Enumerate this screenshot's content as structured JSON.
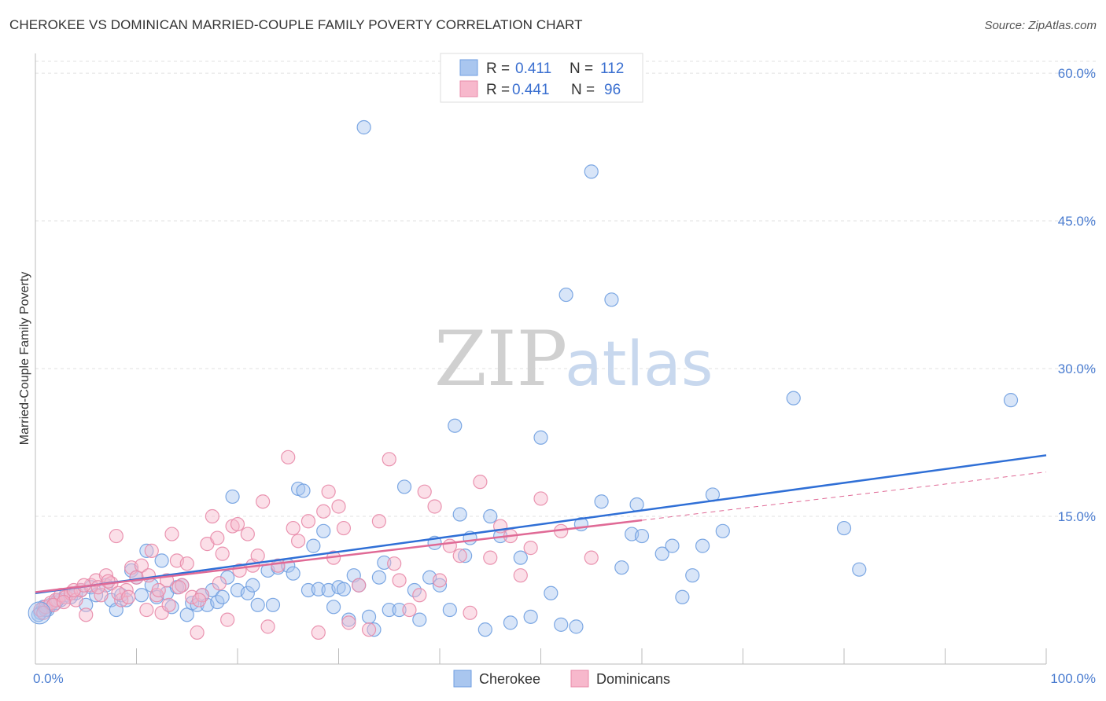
{
  "title": "CHEROKEE VS DOMINICAN MARRIED-COUPLE FAMILY POVERTY CORRELATION CHART",
  "source": "Source: ZipAtlas.com",
  "watermark": {
    "zip": "ZIP",
    "atlas": "atlas"
  },
  "legend": {
    "rows": [
      {
        "r_label": "R =",
        "r_value": "0.411",
        "n_label": "N =",
        "n_value": "112",
        "color": "#a9c6ef",
        "stroke": "#6f9ee0"
      },
      {
        "r_label": "R =",
        "r_value": "0.441",
        "n_label": "N =",
        "n_value": "96",
        "color": "#f7b8cc",
        "stroke": "#e88aa8"
      }
    ]
  },
  "bottom_legend": [
    {
      "label": "Cherokee",
      "color": "#a9c6ef",
      "stroke": "#6f9ee0"
    },
    {
      "label": "Dominicans",
      "color": "#f7b8cc",
      "stroke": "#e88aa8"
    }
  ],
  "chart_data": {
    "type": "scatter",
    "ylabel": "Married-Couple Family Poverty",
    "xlim": [
      0,
      100
    ],
    "ylim": [
      0,
      62
    ],
    "x_tick_labels": [
      {
        "value": 0,
        "label": "0.0%"
      },
      {
        "value": 100,
        "label": "100.0%"
      }
    ],
    "y_tick_labels": [
      {
        "value": 15,
        "label": "15.0%"
      },
      {
        "value": 30,
        "label": "30.0%"
      },
      {
        "value": 45,
        "label": "45.0%"
      },
      {
        "value": 60,
        "label": "60.0%"
      }
    ],
    "grid": true,
    "series": [
      {
        "name": "Cherokee",
        "color": "#a9c6ef",
        "stroke": "#6f9ee0",
        "trend": {
          "x": [
            0,
            100
          ],
          "y": [
            7.2,
            21.2
          ],
          "color": "#2f6fd6"
        },
        "points": [
          [
            0.5,
            5.2
          ],
          [
            0.8,
            5.8
          ],
          [
            1.2,
            5.5
          ],
          [
            1.5,
            6.0
          ],
          [
            2.0,
            6.2
          ],
          [
            2.5,
            6.5
          ],
          [
            3.0,
            7.0
          ],
          [
            3.5,
            6.8
          ],
          [
            4.0,
            7.2
          ],
          [
            4.5,
            7.5
          ],
          [
            5.0,
            6.0
          ],
          [
            5.5,
            7.8
          ],
          [
            6.0,
            7.0
          ],
          [
            7.0,
            8.0
          ],
          [
            7.5,
            6.5
          ],
          [
            8.0,
            5.5
          ],
          [
            8.5,
            7.0
          ],
          [
            9.0,
            6.5
          ],
          [
            9.5,
            9.5
          ],
          [
            10.0,
            8.8
          ],
          [
            10.5,
            7.0
          ],
          [
            11.0,
            11.5
          ],
          [
            11.5,
            8.0
          ],
          [
            12.0,
            6.8
          ],
          [
            12.5,
            10.5
          ],
          [
            13.0,
            7.2
          ],
          [
            13.5,
            5.8
          ],
          [
            14.0,
            7.8
          ],
          [
            14.5,
            8.0
          ],
          [
            15.0,
            5.0
          ],
          [
            15.5,
            6.2
          ],
          [
            16.0,
            6.0
          ],
          [
            16.5,
            7.0
          ],
          [
            17.0,
            6.0
          ],
          [
            17.5,
            7.5
          ],
          [
            18.0,
            6.3
          ],
          [
            18.5,
            6.8
          ],
          [
            19.0,
            8.8
          ],
          [
            19.5,
            17.0
          ],
          [
            20.0,
            7.5
          ],
          [
            21.0,
            7.2
          ],
          [
            21.5,
            8.0
          ],
          [
            22.0,
            6.0
          ],
          [
            23.0,
            9.5
          ],
          [
            23.5,
            6.0
          ],
          [
            24.0,
            9.8
          ],
          [
            25.0,
            10.0
          ],
          [
            25.5,
            9.2
          ],
          [
            26.0,
            17.8
          ],
          [
            26.5,
            17.6
          ],
          [
            27.0,
            7.5
          ],
          [
            27.5,
            12.0
          ],
          [
            28.0,
            7.6
          ],
          [
            28.5,
            13.5
          ],
          [
            29.0,
            7.5
          ],
          [
            29.5,
            5.8
          ],
          [
            30.0,
            7.8
          ],
          [
            30.5,
            7.6
          ],
          [
            31.0,
            4.5
          ],
          [
            31.5,
            9.0
          ],
          [
            32.0,
            8.0
          ],
          [
            32.5,
            54.5
          ],
          [
            33.0,
            4.8
          ],
          [
            33.5,
            3.5
          ],
          [
            34.0,
            8.8
          ],
          [
            34.5,
            10.3
          ],
          [
            35.0,
            5.5
          ],
          [
            36.0,
            5.5
          ],
          [
            36.5,
            18.0
          ],
          [
            37.5,
            7.5
          ],
          [
            38.0,
            4.5
          ],
          [
            39.0,
            8.8
          ],
          [
            39.5,
            12.3
          ],
          [
            40.0,
            8.0
          ],
          [
            41.0,
            5.5
          ],
          [
            41.5,
            24.2
          ],
          [
            42.0,
            15.2
          ],
          [
            42.5,
            11.0
          ],
          [
            43.0,
            12.8
          ],
          [
            44.5,
            3.5
          ],
          [
            45.0,
            15.0
          ],
          [
            46.0,
            13.0
          ],
          [
            47.0,
            4.2
          ],
          [
            48.0,
            10.8
          ],
          [
            49.0,
            4.8
          ],
          [
            50.0,
            23.0
          ],
          [
            51.0,
            7.2
          ],
          [
            52.0,
            4.0
          ],
          [
            52.5,
            37.5
          ],
          [
            53.5,
            3.8
          ],
          [
            54.0,
            14.2
          ],
          [
            55.0,
            50.0
          ],
          [
            56.0,
            16.5
          ],
          [
            57.0,
            37.0
          ],
          [
            58.0,
            9.8
          ],
          [
            59.0,
            13.2
          ],
          [
            59.5,
            16.2
          ],
          [
            60.0,
            13.0
          ],
          [
            62.0,
            11.2
          ],
          [
            63.0,
            12.0
          ],
          [
            64.0,
            6.8
          ],
          [
            65.0,
            9.0
          ],
          [
            66.0,
            12.0
          ],
          [
            67.0,
            17.2
          ],
          [
            68.0,
            13.5
          ],
          [
            75.0,
            27.0
          ],
          [
            80.0,
            13.8
          ],
          [
            81.5,
            9.6
          ],
          [
            96.5,
            26.8
          ],
          [
            0.3,
            5.0
          ],
          [
            1.0,
            5.5
          ],
          [
            2.2,
            6.5
          ]
        ]
      },
      {
        "name": "Dominicans",
        "color": "#f7b8cc",
        "stroke": "#e88aa8",
        "trend": {
          "x": [
            0,
            60
          ],
          "y": [
            7.3,
            14.6
          ],
          "color": "#e06a96"
        },
        "extrapolation": {
          "x": [
            60,
            100
          ],
          "y": [
            14.6,
            19.5
          ]
        },
        "points": [
          [
            0.5,
            5.5
          ],
          [
            1.0,
            5.8
          ],
          [
            1.5,
            6.2
          ],
          [
            2.0,
            6.5
          ],
          [
            2.5,
            7.0
          ],
          [
            3.0,
            6.8
          ],
          [
            3.5,
            7.2
          ],
          [
            4.0,
            6.5
          ],
          [
            4.5,
            7.5
          ],
          [
            5.0,
            5.0
          ],
          [
            5.5,
            8.0
          ],
          [
            6.0,
            8.5
          ],
          [
            6.5,
            7.0
          ],
          [
            7.0,
            9.0
          ],
          [
            7.5,
            8.2
          ],
          [
            8.0,
            13.0
          ],
          [
            8.5,
            6.5
          ],
          [
            9.0,
            7.5
          ],
          [
            9.5,
            9.8
          ],
          [
            10.0,
            8.8
          ],
          [
            10.5,
            10.0
          ],
          [
            11.0,
            5.5
          ],
          [
            11.5,
            11.5
          ],
          [
            12.0,
            7.0
          ],
          [
            12.5,
            5.2
          ],
          [
            13.0,
            8.5
          ],
          [
            13.5,
            13.2
          ],
          [
            14.0,
            10.5
          ],
          [
            14.5,
            8.0
          ],
          [
            15.0,
            10.2
          ],
          [
            15.5,
            6.8
          ],
          [
            16.0,
            3.2
          ],
          [
            16.5,
            7.0
          ],
          [
            17.0,
            12.2
          ],
          [
            17.5,
            15.0
          ],
          [
            18.0,
            12.8
          ],
          [
            18.5,
            11.2
          ],
          [
            19.0,
            4.5
          ],
          [
            19.5,
            14.0
          ],
          [
            20.0,
            14.2
          ],
          [
            21.0,
            13.2
          ],
          [
            21.5,
            10.0
          ],
          [
            22.0,
            11.0
          ],
          [
            22.5,
            16.5
          ],
          [
            23.0,
            3.8
          ],
          [
            24.0,
            10.0
          ],
          [
            25.0,
            21.0
          ],
          [
            25.5,
            13.8
          ],
          [
            26.0,
            12.5
          ],
          [
            27.0,
            14.5
          ],
          [
            28.0,
            3.2
          ],
          [
            28.5,
            15.5
          ],
          [
            29.0,
            17.5
          ],
          [
            29.5,
            10.8
          ],
          [
            30.0,
            16.0
          ],
          [
            30.5,
            13.8
          ],
          [
            31.0,
            4.2
          ],
          [
            32.0,
            8.0
          ],
          [
            33.0,
            3.5
          ],
          [
            34.0,
            14.5
          ],
          [
            35.0,
            20.8
          ],
          [
            35.5,
            10.2
          ],
          [
            36.0,
            8.5
          ],
          [
            37.0,
            5.5
          ],
          [
            38.0,
            7.0
          ],
          [
            38.5,
            17.5
          ],
          [
            39.5,
            16.0
          ],
          [
            40.0,
            8.5
          ],
          [
            41.0,
            12.0
          ],
          [
            42.0,
            11.0
          ],
          [
            43.0,
            5.2
          ],
          [
            44.0,
            18.5
          ],
          [
            45.0,
            10.8
          ],
          [
            46.0,
            14.0
          ],
          [
            47.0,
            13.0
          ],
          [
            48.0,
            9.0
          ],
          [
            49.0,
            11.8
          ],
          [
            50.0,
            16.8
          ],
          [
            52.0,
            13.5
          ],
          [
            55.0,
            10.8
          ],
          [
            0.8,
            5.2
          ],
          [
            1.8,
            6.0
          ],
          [
            2.8,
            6.3
          ],
          [
            3.8,
            7.5
          ],
          [
            4.8,
            8.0
          ],
          [
            6.2,
            7.8
          ],
          [
            7.2,
            8.4
          ],
          [
            8.2,
            7.2
          ],
          [
            9.2,
            6.8
          ],
          [
            11.2,
            9.0
          ],
          [
            12.2,
            7.5
          ],
          [
            13.2,
            6.0
          ],
          [
            14.2,
            7.8
          ],
          [
            16.2,
            6.5
          ],
          [
            18.2,
            8.2
          ],
          [
            20.2,
            9.5
          ]
        ]
      }
    ]
  }
}
